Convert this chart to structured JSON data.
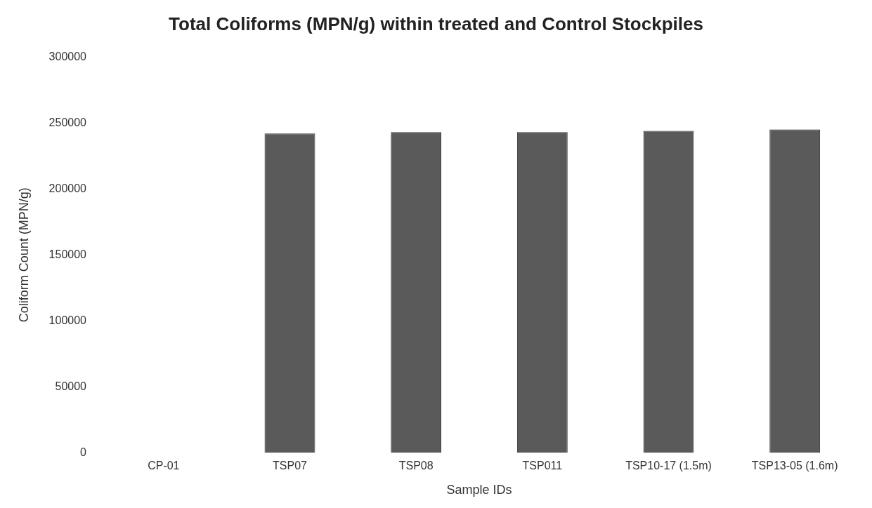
{
  "chart_data": {
    "type": "bar",
    "title": "Total Coliforms (MPN/g) within treated and Control Stockpiles",
    "xlabel": "Sample IDs",
    "ylabel": "Coliform Count (MPN/g)",
    "categories": [
      "CP-01",
      "TSP07",
      "TSP08",
      "TSP011",
      "TSP10-17 (1.5m)",
      "TSP13-05 (1.6m)"
    ],
    "values": [
      0,
      242000,
      243000,
      243000,
      244000,
      245000
    ],
    "color": "#5a5a5a",
    "ylim": [
      0,
      300000
    ],
    "yticks": [
      0,
      50000,
      100000,
      150000,
      200000,
      250000,
      300000
    ],
    "grid": false,
    "legend": false
  }
}
